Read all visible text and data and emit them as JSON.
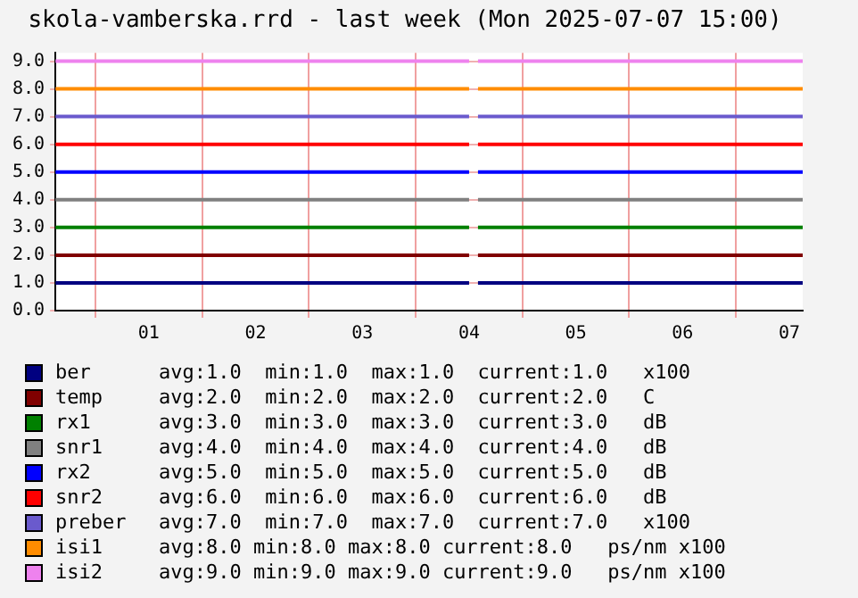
{
  "chart_data": {
    "type": "line",
    "title": "skola-vamberska.rrd - last week (Mon 2025-07-07 15:00)",
    "x": [
      "2025-06-30T15:00",
      "2025-07-04T12:00",
      "2025-07-04T13:00",
      "2025-07-04T14:00",
      "2025-07-07T15:00"
    ],
    "xlim": [
      "2025-06-30T15:00",
      "2025-07-07T15:00"
    ],
    "xticks": [
      {
        "value": "2025-07-01T00:00",
        "label": null
      },
      {
        "value": "2025-07-01T12:00",
        "label": "01"
      },
      {
        "value": "2025-07-02T00:00",
        "label": null
      },
      {
        "value": "2025-07-02T12:00",
        "label": "02"
      },
      {
        "value": "2025-07-03T00:00",
        "label": null
      },
      {
        "value": "2025-07-03T12:00",
        "label": "03"
      },
      {
        "value": "2025-07-04T00:00",
        "label": null
      },
      {
        "value": "2025-07-04T12:00",
        "label": "04"
      },
      {
        "value": "2025-07-05T00:00",
        "label": null
      },
      {
        "value": "2025-07-05T12:00",
        "label": "05"
      },
      {
        "value": "2025-07-06T00:00",
        "label": null
      },
      {
        "value": "2025-07-06T12:00",
        "label": "06"
      },
      {
        "value": "2025-07-07T00:00",
        "label": null
      },
      {
        "value": "2025-07-07T12:00",
        "label": "07"
      }
    ],
    "ylim": [
      0,
      9.3
    ],
    "yticks": [
      {
        "value": 0,
        "label": "0.0"
      },
      {
        "value": 1,
        "label": "1.0"
      },
      {
        "value": 2,
        "label": "2.0"
      },
      {
        "value": 3,
        "label": "3.0"
      },
      {
        "value": 4,
        "label": "4.0"
      },
      {
        "value": 5,
        "label": "5.0"
      },
      {
        "value": 6,
        "label": "6.0"
      },
      {
        "value": 7,
        "label": "7.0"
      },
      {
        "value": 8,
        "label": "8.0"
      },
      {
        "value": 9,
        "label": "9.0"
      }
    ],
    "grid": true,
    "legend": "bottom",
    "marker": "none",
    "line_style": "solid",
    "series": [
      {
        "name": "ber",
        "color": "#000080",
        "values": [
          1,
          1,
          null,
          1,
          1
        ]
      },
      {
        "name": "temp",
        "color": "#800000",
        "values": [
          2,
          2,
          null,
          2,
          2
        ]
      },
      {
        "name": "rx1",
        "color": "#008000",
        "values": [
          3,
          3,
          null,
          3,
          3
        ]
      },
      {
        "name": "snr1",
        "color": "#808080",
        "values": [
          4,
          4,
          null,
          4,
          4
        ]
      },
      {
        "name": "rx2",
        "color": "#0000ff",
        "values": [
          5,
          5,
          null,
          5,
          5
        ]
      },
      {
        "name": "snr2",
        "color": "#ff0000",
        "values": [
          6,
          6,
          null,
          6,
          6
        ]
      },
      {
        "name": "preber",
        "color": "#6a5acd",
        "values": [
          7,
          7,
          null,
          7,
          7
        ]
      },
      {
        "name": "isi1",
        "color": "#ff8c00",
        "values": [
          8,
          8,
          null,
          8,
          8
        ]
      },
      {
        "name": "isi2",
        "color": "#ee82ee",
        "values": [
          9,
          9,
          null,
          9,
          9
        ]
      }
    ],
    "annotations": [
      "avg:1.0  min:1.0  max:1.0  current:1.0   x100",
      "avg:2.0  min:2.0  max:2.0  current:2.0   C",
      "avg:3.0  min:3.0  max:3.0  current:3.0   dB",
      "avg:4.0  min:4.0  max:4.0  current:4.0   dB",
      "avg:5.0  min:5.0  max:5.0  current:5.0   dB",
      "avg:6.0  min:6.0  max:6.0  current:6.0   dB",
      "avg:7.0  min:7.0  max:7.0  current:7.0   x100",
      "avg:8.0 min:8.0 max:8.0 current:8.0   ps/nm x100",
      "avg:9.0 min:9.0 max:9.0 current:9.0   ps/nm x100"
    ]
  }
}
